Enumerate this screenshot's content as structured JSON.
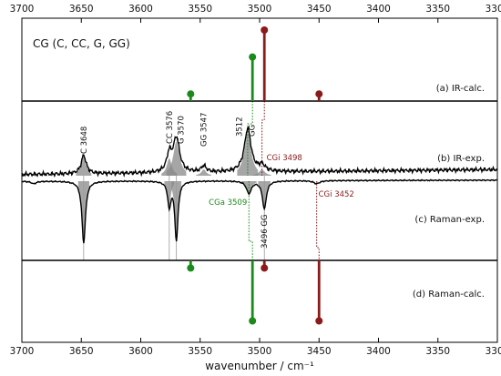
{
  "chart_data": {
    "type": "line",
    "title": "CG (C, CC, G, GG)",
    "xlabel": "wavenumber / cm⁻¹",
    "xlim": [
      3700,
      3300
    ],
    "xticks": [
      3700,
      3650,
      3600,
      3550,
      3500,
      3450,
      3400,
      3350,
      3300
    ],
    "panels": [
      {
        "id": "a",
        "label": "(a) IR-calc."
      },
      {
        "id": "b",
        "label": "(b) IR-exp."
      },
      {
        "id": "c",
        "label": "(c) Raman-exp."
      },
      {
        "id": "d",
        "label": "(d) Raman-calc."
      }
    ],
    "stick_series": [
      {
        "panel": "a",
        "direction": "up",
        "sticks": [
          {
            "x": 3558,
            "intensity": 0.1,
            "color": "#1a8a1a"
          },
          {
            "x": 3506,
            "intensity": 0.62,
            "color": "#1a8a1a"
          },
          {
            "x": 3496,
            "intensity": 1.0,
            "color": "#8b1a1a"
          },
          {
            "x": 3450,
            "intensity": 0.1,
            "color": "#8b1a1a"
          }
        ]
      },
      {
        "panel": "d",
        "direction": "down",
        "sticks": [
          {
            "x": 3558,
            "intensity": 0.12,
            "color": "#1a8a1a"
          },
          {
            "x": 3506,
            "intensity": 0.95,
            "color": "#1a8a1a"
          },
          {
            "x": 3496,
            "intensity": 0.12,
            "color": "#8b1a1a"
          },
          {
            "x": 3450,
            "intensity": 0.95,
            "color": "#8b1a1a"
          }
        ]
      }
    ],
    "spectra": [
      {
        "panel": "b",
        "direction": "up",
        "peaks": [
          {
            "x": 3648,
            "height": 0.3,
            "width": 2.5
          },
          {
            "x": 3576,
            "height": 0.28,
            "width": 2.5
          },
          {
            "x": 3570,
            "height": 0.55,
            "width": 3.2
          },
          {
            "x": 3547,
            "height": 0.1,
            "width": 2.5
          },
          {
            "x": 3510,
            "height": 0.7,
            "width": 3.4
          },
          {
            "x": 3498,
            "height": 0.1,
            "width": 3.0
          }
        ]
      },
      {
        "panel": "c",
        "direction": "down",
        "peaks": [
          {
            "x": 3690,
            "height": 0.04,
            "width": 2.5
          },
          {
            "x": 3648,
            "height": 1.0,
            "width": 1.8
          },
          {
            "x": 3576,
            "height": 0.4,
            "width": 1.6
          },
          {
            "x": 3570,
            "height": 0.95,
            "width": 1.6
          },
          {
            "x": 3509,
            "height": 0.2,
            "width": 2.5
          },
          {
            "x": 3496,
            "height": 0.45,
            "width": 2.0
          },
          {
            "x": 3452,
            "height": 0.05,
            "width": 3.0
          }
        ]
      }
    ],
    "annotations": [
      {
        "text": "C  3648",
        "x": 3648,
        "color": "#111111",
        "panel": "b"
      },
      {
        "text": "CC 3576",
        "x": 3576,
        "color": "#111111",
        "panel": "b"
      },
      {
        "text": "G  3570",
        "x": 3570,
        "color": "#111111",
        "panel": "b"
      },
      {
        "text": "GG  3547",
        "x": 3547,
        "color": "#111111",
        "panel": "b"
      },
      {
        "text": "3512",
        "x": 3512,
        "color": "#111111",
        "panel": "b"
      },
      {
        "text": "GG",
        "x": 3509,
        "color": "#111111",
        "panel": "b"
      },
      {
        "text": "CGi  3498",
        "x": 3498,
        "color": "#8b1a1a",
        "panel": "b"
      },
      {
        "text": "CGa  3509",
        "x": 3509,
        "color": "#1a8a1a",
        "panel": "c"
      },
      {
        "text": "CGi  3452",
        "x": 3452,
        "color": "#8b1a1a",
        "panel": "c"
      },
      {
        "text": "3496 GG",
        "x": 3496,
        "color": "#111111",
        "panel": "c"
      }
    ]
  }
}
